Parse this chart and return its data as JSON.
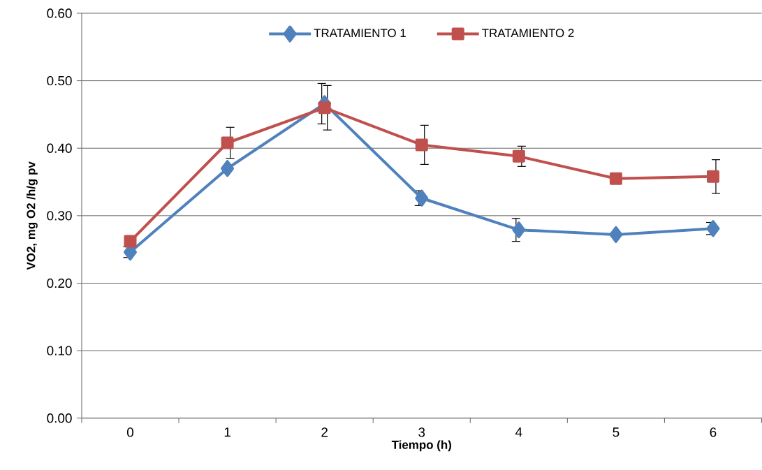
{
  "chart_data": {
    "type": "line",
    "xlabel": "Tiempo (h)",
    "ylabel": "VO2, mg O2 /h/g pv",
    "categories": [
      "0",
      "1",
      "2",
      "3",
      "4",
      "5",
      "6"
    ],
    "ylim": [
      0,
      0.6
    ],
    "yticks": [
      {
        "value": 0,
        "label": "0.00"
      },
      {
        "value": 0.1,
        "label": "0.10"
      },
      {
        "value": 0.2,
        "label": "0.20"
      },
      {
        "value": 0.3,
        "label": "0.30"
      },
      {
        "value": 0.4,
        "label": "0.40"
      },
      {
        "value": 0.5,
        "label": "0.50"
      },
      {
        "value": 0.6,
        "label": "0.60"
      }
    ],
    "grid": "y",
    "legend": "top",
    "line_style": "solid",
    "series": [
      {
        "name": "TRATAMIENTO 1",
        "color": "#4f81bd",
        "marker": "diamond",
        "values": [
          0.246,
          0.37,
          0.466,
          0.326,
          0.279,
          0.272,
          0.281
        ],
        "errors": [
          0.008,
          null,
          0.03,
          0.011,
          0.017,
          null,
          0.009
        ]
      },
      {
        "name": "TRATAMIENTO 2",
        "color": "#c0504d",
        "marker": "square",
        "values": [
          0.262,
          0.408,
          0.46,
          0.405,
          0.388,
          0.355,
          0.358
        ],
        "errors": [
          null,
          0.023,
          0.033,
          0.029,
          0.015,
          null,
          0.025
        ]
      }
    ]
  }
}
